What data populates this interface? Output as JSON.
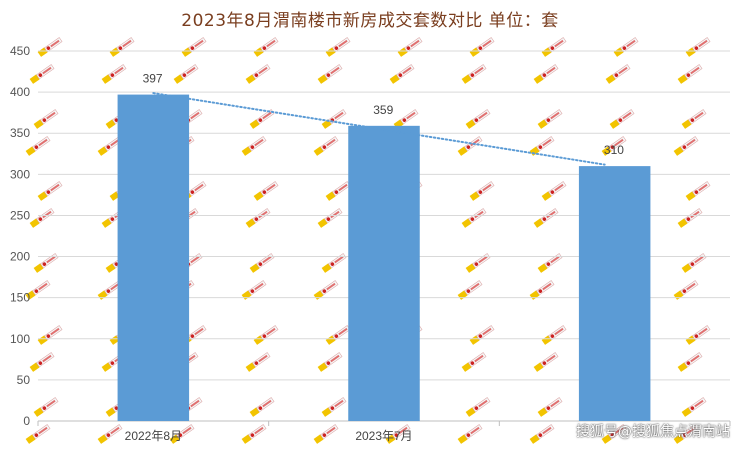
{
  "chart_data": {
    "type": "bar",
    "title": "2023年8月渭南楼市新房成交套数对比 单位：套",
    "categories": [
      "2022年8月",
      "2023年7月",
      ""
    ],
    "values": [
      397,
      359,
      310
    ],
    "data_labels": [
      "397",
      "359",
      "310"
    ],
    "ylim": [
      0,
      450
    ],
    "yticks": [
      0,
      50,
      100,
      150,
      200,
      250,
      300,
      350,
      400,
      450
    ],
    "grid": true,
    "trendline": "linear-dotted",
    "colors": {
      "bar": "#5b9bd5",
      "trend": "#5b9bd5",
      "grid": "#d9d9d9",
      "title": "#7a3e1f"
    }
  },
  "watermark": "搜狐号@搜狐焦点渭南站"
}
